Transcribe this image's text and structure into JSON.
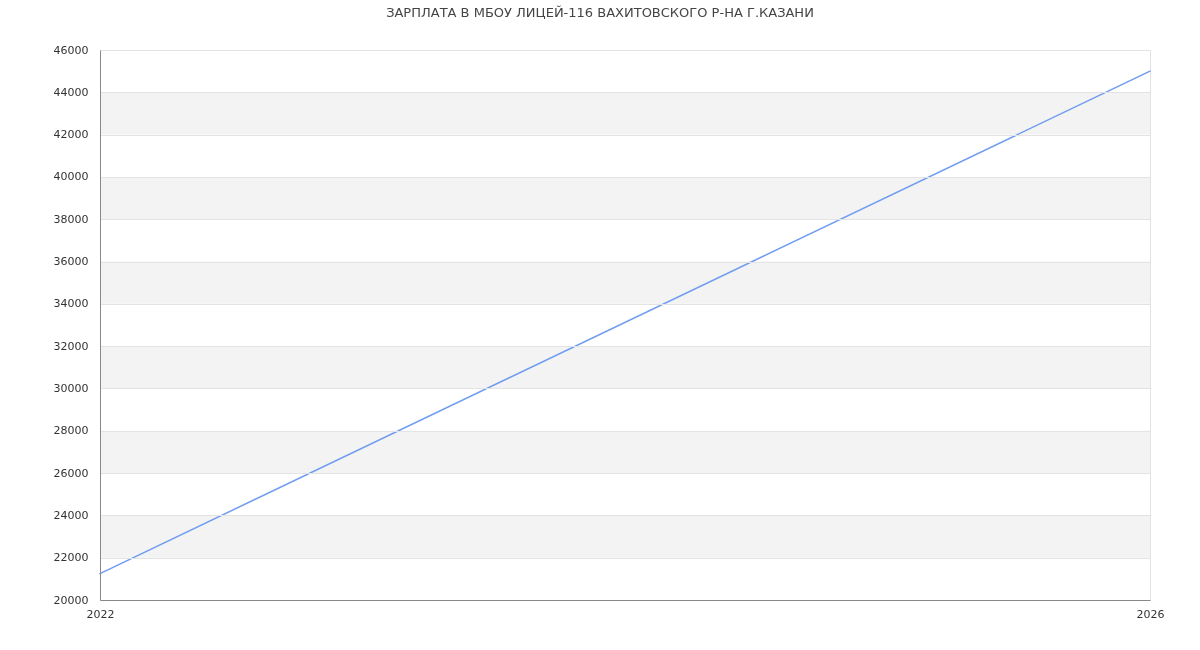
{
  "chart_data": {
    "type": "line",
    "title": "ЗАРПЛАТА В МБОУ ЛИЦЕЙ-116 ВАХИТОВСКОГО Р-НА Г.КАЗАНИ",
    "x": [
      2022,
      2026
    ],
    "series": [
      {
        "color": "#6f9cf0",
        "values": [
          21250,
          45000
        ]
      }
    ],
    "xlim": [
      2022,
      2026
    ],
    "xticks": [
      2022,
      2026
    ],
    "ylim": [
      20000,
      46000
    ],
    "yticks": [
      20000,
      22000,
      24000,
      26000,
      28000,
      30000,
      32000,
      34000,
      36000,
      38000,
      40000,
      42000,
      44000,
      46000
    ],
    "grid": "y",
    "marker": "none",
    "line_style": "solid"
  }
}
